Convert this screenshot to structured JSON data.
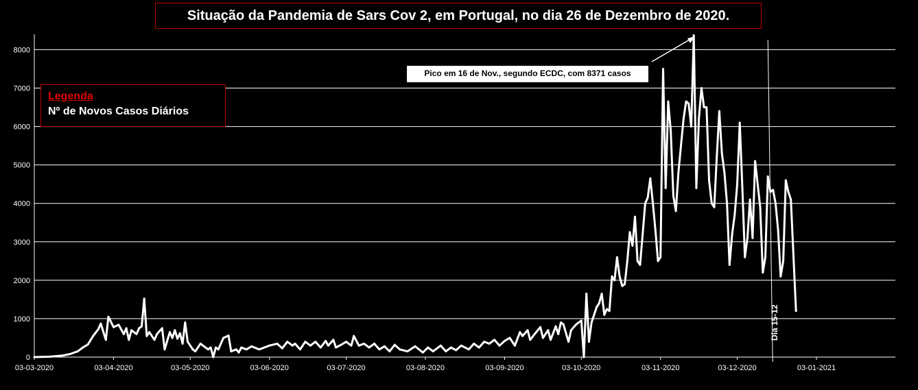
{
  "title": "Situação da Pandemia de Sars Cov 2, em Portugal, no dia 26 de Dezembro de 2020.",
  "legend": {
    "title": "Legenda",
    "item": "Nº de Novos Casos Diários"
  },
  "peak_annotation": "Pico em 16 de Nov., segundo ECDC, com 8371 casos",
  "marker_label": "Dia 15-12",
  "colors": {
    "background": "#000000",
    "line": "#ffffff",
    "grid": "#ffffff",
    "frame": "#c00000"
  },
  "chart_data": {
    "type": "line",
    "ylim": [
      0,
      8400
    ],
    "yticks": [
      0,
      1000,
      2000,
      3000,
      4000,
      5000,
      6000,
      7000,
      8000
    ],
    "xticks": [
      "03-03-2020",
      "03-04-2020",
      "03-05-2020",
      "03-06-2020",
      "03-07-2020",
      "03-08-2020",
      "03-09-2020",
      "03-10-2020",
      "03-11-2020",
      "03-12-2020",
      "03-01-2021"
    ],
    "x_start": "03-03-2020",
    "x_end": "26-12-2020",
    "vertical_marker": "15-12-2020",
    "grid": "horizontal",
    "series": [
      {
        "name": "Nº de Novos Casos Diários",
        "points": [
          [
            "03-03-2020",
            0
          ],
          [
            "09-03-2020",
            10
          ],
          [
            "14-03-2020",
            40
          ],
          [
            "17-03-2020",
            80
          ],
          [
            "20-03-2020",
            150
          ],
          [
            "22-03-2020",
            250
          ],
          [
            "24-03-2020",
            330
          ],
          [
            "26-03-2020",
            550
          ],
          [
            "28-03-2020",
            720
          ],
          [
            "29-03-2020",
            870
          ],
          [
            "31-03-2020",
            450
          ],
          [
            "01-04-2020",
            1050
          ],
          [
            "03-04-2020",
            780
          ],
          [
            "05-04-2020",
            840
          ],
          [
            "07-04-2020",
            600
          ],
          [
            "08-04-2020",
            750
          ],
          [
            "09-04-2020",
            450
          ],
          [
            "10-04-2020",
            700
          ],
          [
            "12-04-2020",
            600
          ],
          [
            "13-04-2020",
            750
          ],
          [
            "14-04-2020",
            800
          ],
          [
            "15-04-2020",
            1520
          ],
          [
            "16-04-2020",
            550
          ],
          [
            "17-04-2020",
            650
          ],
          [
            "19-04-2020",
            450
          ],
          [
            "20-04-2020",
            600
          ],
          [
            "22-04-2020",
            750
          ],
          [
            "23-04-2020",
            200
          ],
          [
            "25-04-2020",
            650
          ],
          [
            "26-04-2020",
            500
          ],
          [
            "27-04-2020",
            700
          ],
          [
            "28-04-2020",
            480
          ],
          [
            "29-04-2020",
            620
          ],
          [
            "30-04-2020",
            350
          ],
          [
            "01-05-2020",
            900
          ],
          [
            "02-05-2020",
            400
          ],
          [
            "04-05-2020",
            200
          ],
          [
            "05-05-2020",
            150
          ],
          [
            "07-05-2020",
            350
          ],
          [
            "08-05-2020",
            300
          ],
          [
            "10-05-2020",
            200
          ],
          [
            "11-05-2020",
            250
          ],
          [
            "12-05-2020",
            0
          ],
          [
            "13-05-2020",
            250
          ],
          [
            "14-05-2020",
            200
          ],
          [
            "16-05-2020",
            500
          ],
          [
            "18-05-2020",
            560
          ],
          [
            "19-05-2020",
            150
          ],
          [
            "21-05-2020",
            200
          ],
          [
            "22-05-2020",
            120
          ],
          [
            "23-05-2020",
            250
          ],
          [
            "25-05-2020",
            200
          ],
          [
            "27-05-2020",
            280
          ],
          [
            "30-05-2020",
            200
          ],
          [
            "03-06-2020",
            300
          ],
          [
            "06-06-2020",
            350
          ],
          [
            "08-06-2020",
            230
          ],
          [
            "10-06-2020",
            400
          ],
          [
            "12-06-2020",
            300
          ],
          [
            "13-06-2020",
            350
          ],
          [
            "15-06-2020",
            200
          ],
          [
            "17-06-2020",
            400
          ],
          [
            "19-06-2020",
            300
          ],
          [
            "21-06-2020",
            400
          ],
          [
            "23-06-2020",
            250
          ],
          [
            "25-06-2020",
            420
          ],
          [
            "26-06-2020",
            300
          ],
          [
            "28-06-2020",
            450
          ],
          [
            "29-06-2020",
            250
          ],
          [
            "01-07-2020",
            320
          ],
          [
            "03-07-2020",
            400
          ],
          [
            "05-07-2020",
            300
          ],
          [
            "06-07-2020",
            550
          ],
          [
            "08-07-2020",
            300
          ],
          [
            "10-07-2020",
            350
          ],
          [
            "12-07-2020",
            250
          ],
          [
            "14-07-2020",
            350
          ],
          [
            "16-07-2020",
            200
          ],
          [
            "18-07-2020",
            280
          ],
          [
            "20-07-2020",
            150
          ],
          [
            "22-07-2020",
            320
          ],
          [
            "24-07-2020",
            200
          ],
          [
            "27-07-2020",
            150
          ],
          [
            "30-07-2020",
            280
          ],
          [
            "02-08-2020",
            120
          ],
          [
            "04-08-2020",
            250
          ],
          [
            "06-08-2020",
            150
          ],
          [
            "09-08-2020",
            300
          ],
          [
            "11-08-2020",
            150
          ],
          [
            "13-08-2020",
            250
          ],
          [
            "15-08-2020",
            180
          ],
          [
            "17-08-2020",
            300
          ],
          [
            "20-08-2020",
            200
          ],
          [
            "22-08-2020",
            350
          ],
          [
            "24-08-2020",
            250
          ],
          [
            "26-08-2020",
            400
          ],
          [
            "28-08-2020",
            350
          ],
          [
            "30-08-2020",
            450
          ],
          [
            "01-09-2020",
            300
          ],
          [
            "03-09-2020",
            420
          ],
          [
            "05-09-2020",
            500
          ],
          [
            "07-09-2020",
            300
          ],
          [
            "09-09-2020",
            650
          ],
          [
            "10-09-2020",
            550
          ],
          [
            "12-09-2020",
            700
          ],
          [
            "13-09-2020",
            450
          ],
          [
            "15-09-2020",
            620
          ],
          [
            "17-09-2020",
            780
          ],
          [
            "18-09-2020",
            500
          ],
          [
            "20-09-2020",
            700
          ],
          [
            "21-09-2020",
            450
          ],
          [
            "23-09-2020",
            800
          ],
          [
            "24-09-2020",
            600
          ],
          [
            "25-09-2020",
            900
          ],
          [
            "26-09-2020",
            850
          ],
          [
            "28-09-2020",
            400
          ],
          [
            "29-09-2020",
            700
          ],
          [
            "01-10-2020",
            850
          ],
          [
            "03-10-2020",
            950
          ],
          [
            "04-10-2020",
            0
          ],
          [
            "05-10-2020",
            1650
          ],
          [
            "06-10-2020",
            400
          ],
          [
            "07-10-2020",
            900
          ],
          [
            "09-10-2020",
            1300
          ],
          [
            "10-10-2020",
            1400
          ],
          [
            "11-10-2020",
            1650
          ],
          [
            "12-10-2020",
            1100
          ],
          [
            "13-10-2020",
            1250
          ],
          [
            "14-10-2020",
            1200
          ],
          [
            "15-10-2020",
            2100
          ],
          [
            "16-10-2020",
            2000
          ],
          [
            "17-10-2020",
            2600
          ],
          [
            "18-10-2020",
            2100
          ],
          [
            "19-10-2020",
            1850
          ],
          [
            "20-10-2020",
            1900
          ],
          [
            "21-10-2020",
            2500
          ],
          [
            "22-10-2020",
            3250
          ],
          [
            "23-10-2020",
            2900
          ],
          [
            "24-10-2020",
            3650
          ],
          [
            "25-10-2020",
            2500
          ],
          [
            "26-10-2020",
            2400
          ],
          [
            "27-10-2020",
            3200
          ],
          [
            "28-10-2020",
            4000
          ],
          [
            "29-10-2020",
            4150
          ],
          [
            "30-10-2020",
            4650
          ],
          [
            "31-10-2020",
            4000
          ],
          [
            "01-11-2020",
            3300
          ],
          [
            "02-11-2020",
            2500
          ],
          [
            "03-11-2020",
            2600
          ],
          [
            "04-11-2020",
            7500
          ],
          [
            "05-11-2020",
            4400
          ],
          [
            "06-11-2020",
            6650
          ],
          [
            "07-11-2020",
            5900
          ],
          [
            "08-11-2020",
            4200
          ],
          [
            "09-11-2020",
            3800
          ],
          [
            "10-11-2020",
            4800
          ],
          [
            "11-11-2020",
            5500
          ],
          [
            "12-11-2020",
            6200
          ],
          [
            "13-11-2020",
            6650
          ],
          [
            "14-11-2020",
            6600
          ],
          [
            "15-11-2020",
            6000
          ],
          [
            "16-11-2020",
            8371
          ],
          [
            "17-11-2020",
            4400
          ],
          [
            "18-11-2020",
            6200
          ],
          [
            "19-11-2020",
            7000
          ],
          [
            "20-11-2020",
            6500
          ],
          [
            "21-11-2020",
            6500
          ],
          [
            "22-11-2020",
            4600
          ],
          [
            "23-11-2020",
            4000
          ],
          [
            "24-11-2020",
            3900
          ],
          [
            "25-11-2020",
            5200
          ],
          [
            "26-11-2020",
            6400
          ],
          [
            "27-11-2020",
            5300
          ],
          [
            "28-11-2020",
            4800
          ],
          [
            "29-11-2020",
            4000
          ],
          [
            "30-11-2020",
            2400
          ],
          [
            "01-12-2020",
            3200
          ],
          [
            "02-12-2020",
            3700
          ],
          [
            "03-12-2020",
            4500
          ],
          [
            "04-12-2020",
            6100
          ],
          [
            "05-12-2020",
            4400
          ],
          [
            "06-12-2020",
            2600
          ],
          [
            "07-12-2020",
            3100
          ],
          [
            "08-12-2020",
            4100
          ],
          [
            "09-12-2020",
            3100
          ],
          [
            "10-12-2020",
            5100
          ],
          [
            "11-12-2020",
            4500
          ],
          [
            "12-12-2020",
            3900
          ],
          [
            "13-12-2020",
            2200
          ],
          [
            "14-12-2020",
            2600
          ],
          [
            "15-12-2020",
            4700
          ],
          [
            "16-12-2020",
            4300
          ],
          [
            "17-12-2020",
            4350
          ],
          [
            "18-12-2020",
            4000
          ],
          [
            "19-12-2020",
            3300
          ],
          [
            "20-12-2020",
            2100
          ],
          [
            "21-12-2020",
            2500
          ],
          [
            "22-12-2020",
            4600
          ],
          [
            "23-12-2020",
            4300
          ],
          [
            "24-12-2020",
            4100
          ],
          [
            "26-12-2020",
            1200
          ]
        ]
      }
    ]
  }
}
